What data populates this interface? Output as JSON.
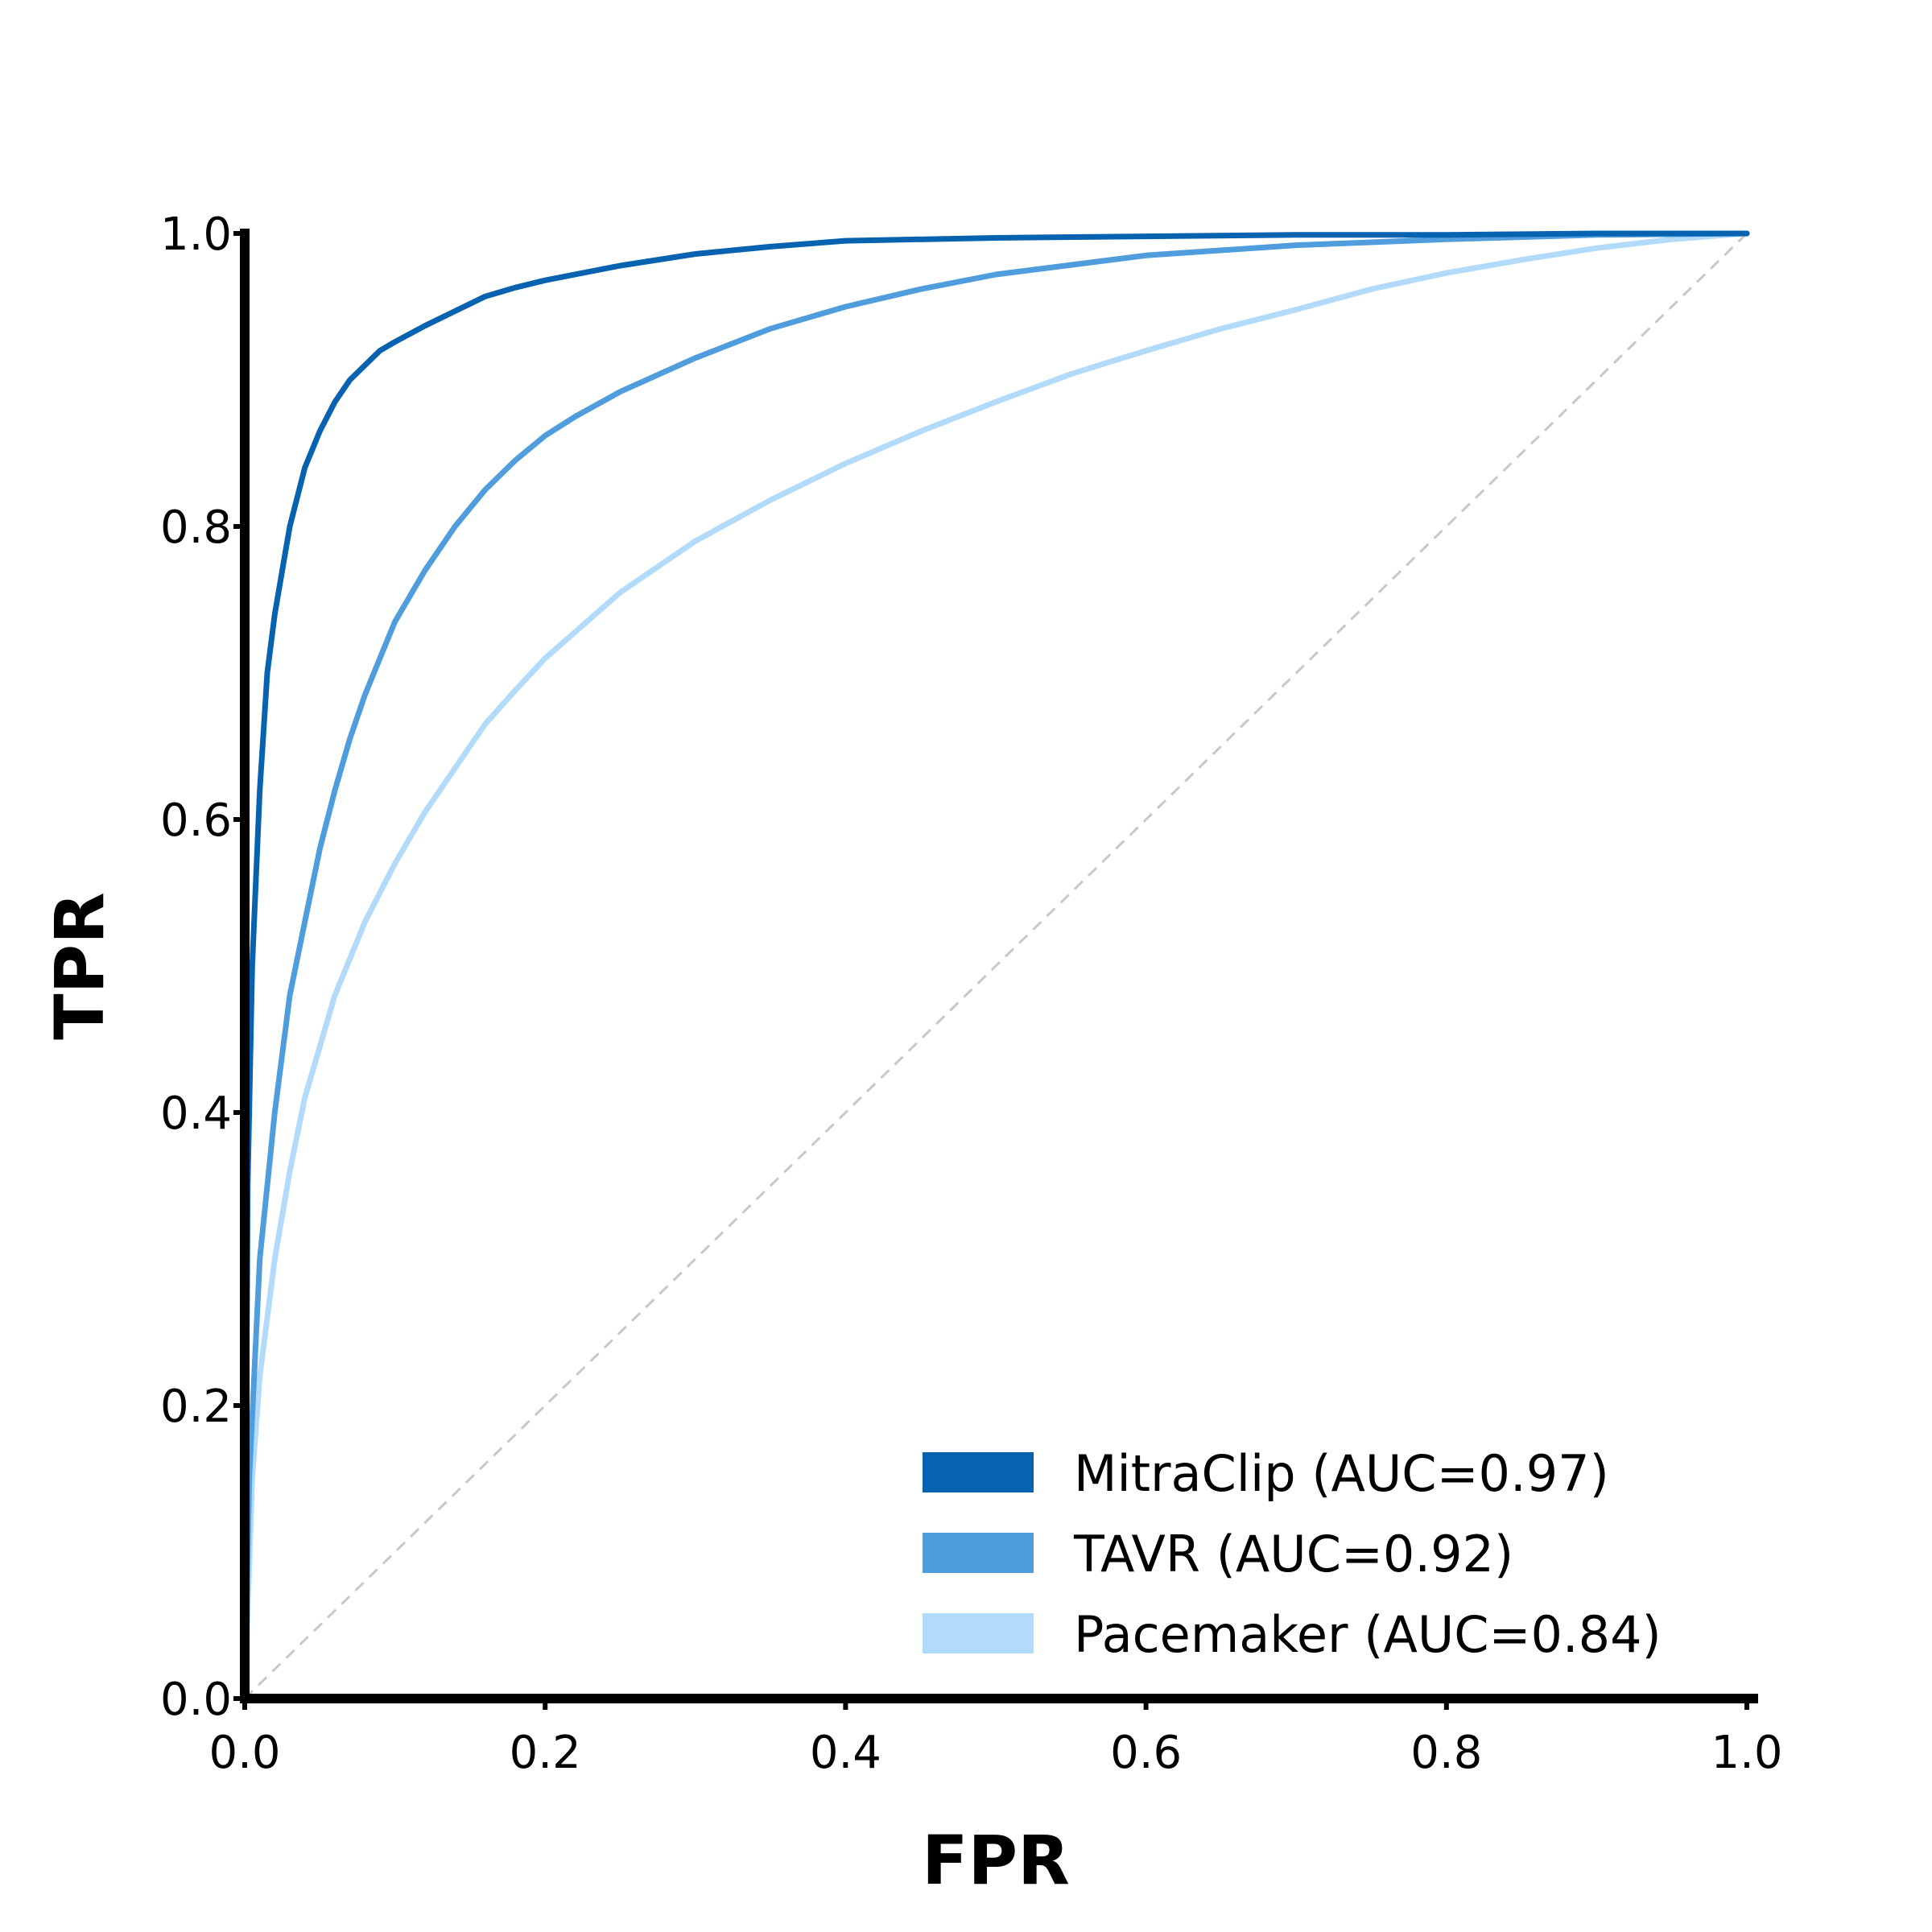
{
  "chart_data": {
    "type": "line",
    "title": "",
    "xlabel": "FPR",
    "ylabel": "TPR",
    "xlim": [
      0.0,
      1.0
    ],
    "ylim": [
      0.0,
      1.0
    ],
    "grid": false,
    "legend_position": "bottom-right",
    "x_ticks": [
      "0.0",
      "0.2",
      "0.4",
      "0.6",
      "0.8",
      "1.0"
    ],
    "y_ticks": [
      "0.0",
      "0.2",
      "0.4",
      "0.6",
      "0.8",
      "1.0"
    ],
    "reference_line": {
      "style": "dashed",
      "color": "#c8c8c8",
      "points": [
        [
          0,
          0
        ],
        [
          1,
          1
        ]
      ]
    },
    "series": [
      {
        "name": "MitraClip (AUC=0.97)",
        "color": "#0763b0",
        "points": [
          [
            0,
            0
          ],
          [
            0.002,
            0.35
          ],
          [
            0.005,
            0.5
          ],
          [
            0.01,
            0.62
          ],
          [
            0.015,
            0.7
          ],
          [
            0.02,
            0.74
          ],
          [
            0.025,
            0.77
          ],
          [
            0.03,
            0.8
          ],
          [
            0.035,
            0.82
          ],
          [
            0.04,
            0.84
          ],
          [
            0.05,
            0.865
          ],
          [
            0.06,
            0.885
          ],
          [
            0.07,
            0.9
          ],
          [
            0.08,
            0.91
          ],
          [
            0.09,
            0.92
          ],
          [
            0.1,
            0.926
          ],
          [
            0.12,
            0.937
          ],
          [
            0.14,
            0.947
          ],
          [
            0.16,
            0.957
          ],
          [
            0.18,
            0.963
          ],
          [
            0.2,
            0.968
          ],
          [
            0.25,
            0.978
          ],
          [
            0.3,
            0.986
          ],
          [
            0.35,
            0.991
          ],
          [
            0.4,
            0.995
          ],
          [
            0.5,
            0.997
          ],
          [
            0.6,
            0.998
          ],
          [
            0.7,
            0.999
          ],
          [
            0.8,
            0.999
          ],
          [
            0.9,
            1.0
          ],
          [
            1.0,
            1.0
          ]
        ]
      },
      {
        "name": "TAVR (AUC=0.92)",
        "color": "#4f9ddd",
        "points": [
          [
            0,
            0
          ],
          [
            0.003,
            0.15
          ],
          [
            0.01,
            0.3
          ],
          [
            0.02,
            0.4
          ],
          [
            0.03,
            0.48
          ],
          [
            0.04,
            0.53
          ],
          [
            0.05,
            0.58
          ],
          [
            0.06,
            0.62
          ],
          [
            0.07,
            0.655
          ],
          [
            0.08,
            0.685
          ],
          [
            0.09,
            0.71
          ],
          [
            0.1,
            0.735
          ],
          [
            0.12,
            0.77
          ],
          [
            0.14,
            0.8
          ],
          [
            0.16,
            0.825
          ],
          [
            0.18,
            0.845
          ],
          [
            0.2,
            0.862
          ],
          [
            0.22,
            0.875
          ],
          [
            0.25,
            0.892
          ],
          [
            0.3,
            0.915
          ],
          [
            0.35,
            0.935
          ],
          [
            0.4,
            0.95
          ],
          [
            0.45,
            0.962
          ],
          [
            0.5,
            0.972
          ],
          [
            0.6,
            0.985
          ],
          [
            0.7,
            0.992
          ],
          [
            0.8,
            0.996
          ],
          [
            0.9,
            0.999
          ],
          [
            1.0,
            1.0
          ]
        ]
      },
      {
        "name": "Pacemaker (AUC=0.84)",
        "color": "#b2dbfb",
        "points": [
          [
            0,
            0
          ],
          [
            0.005,
            0.15
          ],
          [
            0.01,
            0.22
          ],
          [
            0.02,
            0.3
          ],
          [
            0.03,
            0.36
          ],
          [
            0.04,
            0.41
          ],
          [
            0.05,
            0.445
          ],
          [
            0.06,
            0.48
          ],
          [
            0.08,
            0.53
          ],
          [
            0.1,
            0.57
          ],
          [
            0.12,
            0.605
          ],
          [
            0.14,
            0.635
          ],
          [
            0.16,
            0.665
          ],
          [
            0.18,
            0.688
          ],
          [
            0.2,
            0.71
          ],
          [
            0.25,
            0.755
          ],
          [
            0.3,
            0.79
          ],
          [
            0.35,
            0.818
          ],
          [
            0.4,
            0.843
          ],
          [
            0.45,
            0.865
          ],
          [
            0.5,
            0.885
          ],
          [
            0.55,
            0.904
          ],
          [
            0.6,
            0.92
          ],
          [
            0.65,
            0.935
          ],
          [
            0.7,
            0.948
          ],
          [
            0.75,
            0.962
          ],
          [
            0.8,
            0.973
          ],
          [
            0.85,
            0.982
          ],
          [
            0.9,
            0.99
          ],
          [
            0.95,
            0.996
          ],
          [
            1.0,
            1.0
          ]
        ]
      }
    ]
  }
}
